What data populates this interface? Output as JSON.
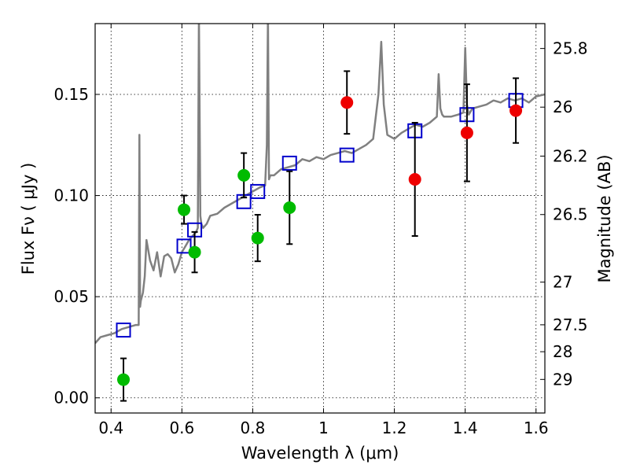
{
  "chart_data": {
    "type": "scatter",
    "title": "",
    "xlabel": "Wavelength  λ (μm)",
    "ylabel": "Flux  Fν  ( μJy )",
    "ylabel_right": "Magnitude (AB)",
    "xlim": [
      0.355,
      1.625
    ],
    "ylim": [
      -0.0075,
      0.185
    ],
    "xticks": [
      0.4,
      0.6,
      0.8,
      1.0,
      1.2,
      1.4,
      1.6
    ],
    "xtick_labels": [
      "0.4",
      "0.6",
      "0.8",
      "1",
      "1.2",
      "1.4",
      "1.6"
    ],
    "yticks": [
      0.0,
      0.05,
      0.1,
      0.15
    ],
    "ytick_labels": [
      "0.00",
      "0.05",
      "0.10",
      "0.15"
    ],
    "right_ticks": [
      {
        "label": "25.8",
        "flux": 0.1727
      },
      {
        "label": "26",
        "flux": 0.1437
      },
      {
        "label": "26.2",
        "flux": 0.1195
      },
      {
        "label": "26.5",
        "flux": 0.0906
      },
      {
        "label": "27",
        "flux": 0.0572
      },
      {
        "label": "27.5",
        "flux": 0.0361
      },
      {
        "label": "28",
        "flux": 0.0228
      },
      {
        "label": "29",
        "flux": 0.0091
      }
    ],
    "grid": true,
    "series": [
      {
        "marker": "circle",
        "color": "#00bb00",
        "points": [
          {
            "x": 0.435,
            "y": 0.009,
            "err": 0.0105
          },
          {
            "x": 0.606,
            "y": 0.093,
            "err": 0.007
          },
          {
            "x": 0.636,
            "y": 0.072,
            "err": 0.01
          },
          {
            "x": 0.775,
            "y": 0.11,
            "err": 0.011
          },
          {
            "x": 0.814,
            "y": 0.079,
            "err": 0.0115
          },
          {
            "x": 0.904,
            "y": 0.094,
            "err": 0.018
          }
        ]
      },
      {
        "marker": "circle",
        "color": "#ee0000",
        "points": [
          {
            "x": 1.066,
            "y": 0.146,
            "err": 0.0155
          },
          {
            "x": 1.258,
            "y": 0.108,
            "err": 0.028
          },
          {
            "x": 1.405,
            "y": 0.131,
            "err": 0.024
          },
          {
            "x": 1.543,
            "y": 0.142,
            "err": 0.016
          }
        ]
      },
      {
        "marker": "open-square",
        "color": "#0000cc",
        "points": [
          {
            "x": 0.435,
            "y": 0.0335
          },
          {
            "x": 0.606,
            "y": 0.075
          },
          {
            "x": 0.636,
            "y": 0.083
          },
          {
            "x": 0.775,
            "y": 0.097
          },
          {
            "x": 0.814,
            "y": 0.102
          },
          {
            "x": 0.904,
            "y": 0.116
          },
          {
            "x": 1.066,
            "y": 0.12
          },
          {
            "x": 1.258,
            "y": 0.132
          },
          {
            "x": 1.405,
            "y": 0.14
          },
          {
            "x": 1.543,
            "y": 0.147
          }
        ]
      },
      {
        "marker": "line",
        "color": "#808080",
        "x": [
          0.355,
          0.37,
          0.39,
          0.41,
          0.43,
          0.45,
          0.47,
          0.478,
          0.48,
          0.482,
          0.484,
          0.487,
          0.49,
          0.495,
          0.5,
          0.51,
          0.52,
          0.53,
          0.54,
          0.55,
          0.56,
          0.57,
          0.58,
          0.59,
          0.6,
          0.61,
          0.62,
          0.63,
          0.64,
          0.645,
          0.648,
          0.652,
          0.655,
          0.66,
          0.67,
          0.68,
          0.7,
          0.72,
          0.74,
          0.76,
          0.78,
          0.8,
          0.82,
          0.835,
          0.84,
          0.843,
          0.846,
          0.85,
          0.855,
          0.86,
          0.88,
          0.9,
          0.92,
          0.94,
          0.96,
          0.98,
          1.0,
          1.02,
          1.04,
          1.06,
          1.08,
          1.1,
          1.12,
          1.14,
          1.155,
          1.163,
          1.17,
          1.18,
          1.2,
          1.22,
          1.24,
          1.26,
          1.28,
          1.3,
          1.32,
          1.325,
          1.33,
          1.335,
          1.34,
          1.36,
          1.38,
          1.395,
          1.4,
          1.405,
          1.41,
          1.42,
          1.44,
          1.46,
          1.48,
          1.5,
          1.52,
          1.54,
          1.56,
          1.58,
          1.6,
          1.625
        ],
        "y": [
          0.027,
          0.03,
          0.031,
          0.032,
          0.034,
          0.035,
          0.036,
          0.036,
          0.13,
          0.045,
          0.048,
          0.05,
          0.052,
          0.06,
          0.078,
          0.068,
          0.063,
          0.072,
          0.06,
          0.07,
          0.071,
          0.069,
          0.062,
          0.066,
          0.072,
          0.075,
          0.078,
          0.08,
          0.082,
          0.084,
          0.19,
          0.09,
          0.086,
          0.084,
          0.086,
          0.09,
          0.091,
          0.094,
          0.096,
          0.098,
          0.1,
          0.102,
          0.104,
          0.105,
          0.125,
          0.19,
          0.108,
          0.11,
          0.11,
          0.11,
          0.113,
          0.114,
          0.115,
          0.118,
          0.117,
          0.119,
          0.118,
          0.12,
          0.121,
          0.122,
          0.121,
          0.123,
          0.125,
          0.128,
          0.15,
          0.176,
          0.145,
          0.13,
          0.128,
          0.131,
          0.133,
          0.135,
          0.134,
          0.136,
          0.139,
          0.16,
          0.143,
          0.14,
          0.139,
          0.139,
          0.14,
          0.141,
          0.173,
          0.145,
          0.14,
          0.143,
          0.144,
          0.145,
          0.147,
          0.146,
          0.148,
          0.147,
          0.148,
          0.146,
          0.149,
          0.15
        ]
      }
    ]
  }
}
